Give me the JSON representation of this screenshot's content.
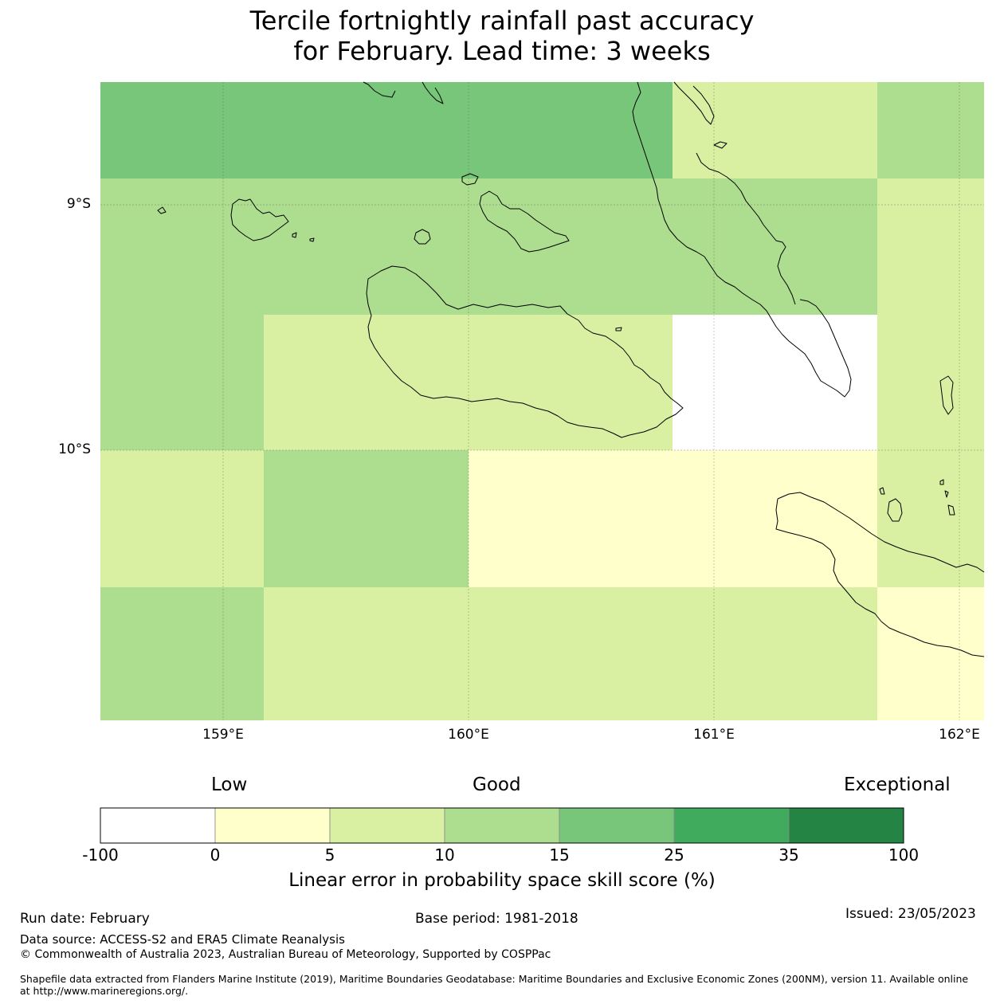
{
  "title": {
    "line1": "Tercile fortnightly rainfall past accuracy",
    "line2": "for February. Lead time: 3 weeks"
  },
  "map": {
    "lat_labels": [
      "9°S",
      "10°S"
    ],
    "lon_labels": [
      "159°E",
      "160°E",
      "161°E",
      "162°E"
    ],
    "cells": [
      {
        "category": "15-25"
      },
      {
        "category": "15-25"
      },
      {
        "category": "15-25"
      },
      {
        "category": "5-10"
      },
      {
        "category": "10-15"
      },
      {
        "category": "10-15"
      },
      {
        "category": "10-15"
      },
      {
        "category": "10-15"
      },
      {
        "category": "10-15"
      },
      {
        "category": "5-10"
      },
      {
        "category": "10-15"
      },
      {
        "category": "5-10"
      },
      {
        "category": "5-10"
      },
      {
        "category": "-100-0"
      },
      {
        "category": "5-10"
      },
      {
        "category": "5-10"
      },
      {
        "category": "10-15"
      },
      {
        "category": "0-5"
      },
      {
        "category": "0-5"
      },
      {
        "category": "5-10"
      },
      {
        "category": "10-15"
      },
      {
        "category": "5-10"
      },
      {
        "category": "5-10"
      },
      {
        "category": "5-10"
      },
      {
        "category": "0-5"
      }
    ],
    "colors": {
      "-100-0": "#ffffff",
      "0-5": "#ffffcc",
      "5-10": "#d9f0a3",
      "10-15": "#addd8e",
      "15-25": "#78c679",
      "25-35": "#41ab5d",
      "35-100": "#238443"
    }
  },
  "colorbar": {
    "qualitative": [
      "Low",
      "Good",
      "Exceptional"
    ],
    "ticks": [
      "-100",
      "0",
      "5",
      "10",
      "15",
      "25",
      "35",
      "100"
    ],
    "colors": [
      "#ffffff",
      "#ffffcc",
      "#d9f0a3",
      "#addd8e",
      "#78c679",
      "#41ab5d",
      "#238443"
    ],
    "label": "Linear error in probability space skill score (%)"
  },
  "footer": {
    "run_date": "Run date: February",
    "base_period": "Base period: 1981-2018",
    "issued": "Issued: 23/05/2023",
    "data_source": "Data source: ACCESS-S2 and ERA5 Climate Reanalysis",
    "copyright": "© Commonwealth of Australia 2023, Australian Bureau of Meteorology, Supported by COSPPac",
    "shapefile": "Shapefile data extracted from Flanders Marine Institute (2019), Maritime Boundaries Geodatabase: Maritime Boundaries and Exclusive Economic Zones (200NM), version 11. Available online at http://www.marineregions.org/."
  }
}
